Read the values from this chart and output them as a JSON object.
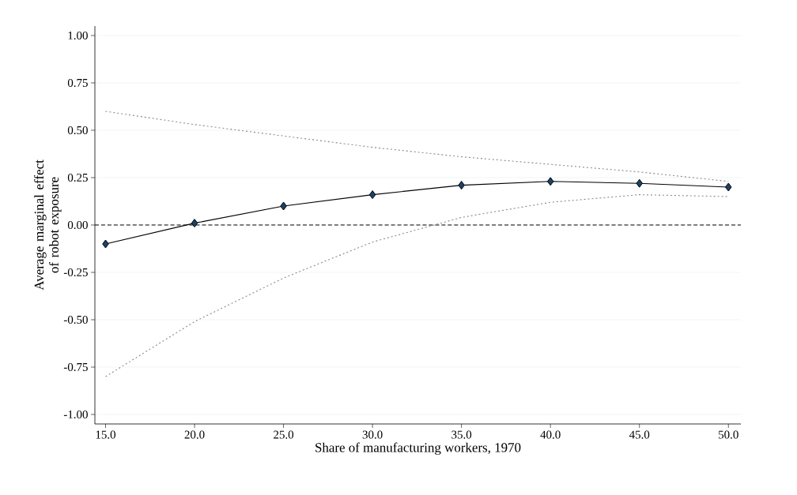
{
  "chart_data": {
    "type": "line",
    "xlabel": "Share of manufacturing workers, 1970",
    "ylabel": "Average marginal effect of robot exposure",
    "x": [
      15,
      20,
      25,
      30,
      35,
      40,
      45,
      50
    ],
    "series": [
      {
        "color": "#000000",
        "marker": "diamond",
        "line_style": "solid",
        "values": [
          -0.1,
          0.01,
          0.1,
          0.16,
          0.21,
          0.23,
          0.22,
          0.2
        ]
      },
      {
        "color": "#888888",
        "marker": "none",
        "line_style": "dotted",
        "values": [
          0.6,
          0.53,
          0.47,
          0.41,
          0.36,
          0.32,
          0.28,
          0.23
        ]
      },
      {
        "color": "#888888",
        "marker": "none",
        "line_style": "dotted",
        "values": [
          -0.8,
          -0.51,
          -0.28,
          -0.09,
          0.04,
          0.12,
          0.16,
          0.15
        ]
      }
    ],
    "xlim": [
      14.4,
      50.7
    ],
    "ylim": [
      -1.05,
      1.05
    ],
    "xticks": [
      {
        "value": 15,
        "label": "15.0"
      },
      {
        "value": 20,
        "label": "20.0"
      },
      {
        "value": 25,
        "label": "25.0"
      },
      {
        "value": 30,
        "label": "30.0"
      },
      {
        "value": 35,
        "label": "35.0"
      },
      {
        "value": 40,
        "label": "40.0"
      },
      {
        "value": 45,
        "label": "45.0"
      },
      {
        "value": 50,
        "label": "50.0"
      }
    ],
    "yticks": [
      {
        "value": -1,
        "label": "-1.00"
      },
      {
        "value": -0.75,
        "label": "-0.75"
      },
      {
        "value": -0.5,
        "label": "-0.50"
      },
      {
        "value": -0.25,
        "label": "-0.25"
      },
      {
        "value": 0,
        "label": "0.00"
      },
      {
        "value": 0.25,
        "label": "0.25"
      },
      {
        "value": 0.5,
        "label": "0.50"
      },
      {
        "value": 0.75,
        "label": "0.75"
      },
      {
        "value": 1,
        "label": "1.00"
      }
    ],
    "grid": "y",
    "ref_lines": [
      {
        "axis": "y",
        "value": 0,
        "color": "#000000",
        "line_style": "dashed"
      }
    ]
  }
}
